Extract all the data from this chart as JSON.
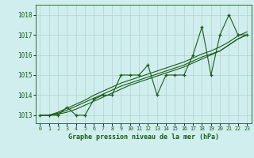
{
  "title": "Graphe pression niveau de la mer (hPa)",
  "bg_color": "#d0eeed",
  "grid_color": "#b0d4cc",
  "line_color": "#1a5c1a",
  "x_ticks": [
    0,
    1,
    2,
    3,
    4,
    5,
    6,
    7,
    8,
    9,
    10,
    11,
    12,
    13,
    14,
    15,
    16,
    17,
    18,
    19,
    20,
    21,
    22,
    23
  ],
  "y_ticks": [
    1013,
    1014,
    1015,
    1016,
    1017,
    1018
  ],
  "ylim": [
    1012.6,
    1018.5
  ],
  "xlim": [
    -0.5,
    23.5
  ],
  "series": {
    "main": [
      1013.0,
      1013.0,
      1013.0,
      1013.4,
      1013.0,
      1013.0,
      1013.8,
      1014.0,
      1014.0,
      1015.0,
      1015.0,
      1015.0,
      1015.5,
      1014.0,
      1015.0,
      1015.0,
      1015.0,
      1016.0,
      1017.4,
      1015.0,
      1017.0,
      1018.0,
      1017.0,
      1017.0
    ],
    "smooth1": [
      1013.0,
      1013.0,
      1013.05,
      1013.15,
      1013.3,
      1013.5,
      1013.7,
      1013.9,
      1014.1,
      1014.3,
      1014.5,
      1014.65,
      1014.8,
      1014.95,
      1015.1,
      1015.25,
      1015.4,
      1015.6,
      1015.8,
      1016.0,
      1016.2,
      1016.5,
      1016.8,
      1017.0
    ],
    "smooth2": [
      1013.0,
      1013.0,
      1013.1,
      1013.25,
      1013.45,
      1013.65,
      1013.85,
      1014.05,
      1014.25,
      1014.45,
      1014.6,
      1014.75,
      1014.9,
      1015.05,
      1015.2,
      1015.35,
      1015.5,
      1015.7,
      1015.9,
      1016.05,
      1016.2,
      1016.5,
      1016.8,
      1017.0
    ],
    "smooth3": [
      1013.0,
      1013.0,
      1013.15,
      1013.35,
      1013.55,
      1013.75,
      1014.0,
      1014.2,
      1014.4,
      1014.6,
      1014.75,
      1014.9,
      1015.05,
      1015.2,
      1015.35,
      1015.5,
      1015.65,
      1015.85,
      1016.05,
      1016.2,
      1016.4,
      1016.65,
      1016.95,
      1017.15
    ]
  }
}
